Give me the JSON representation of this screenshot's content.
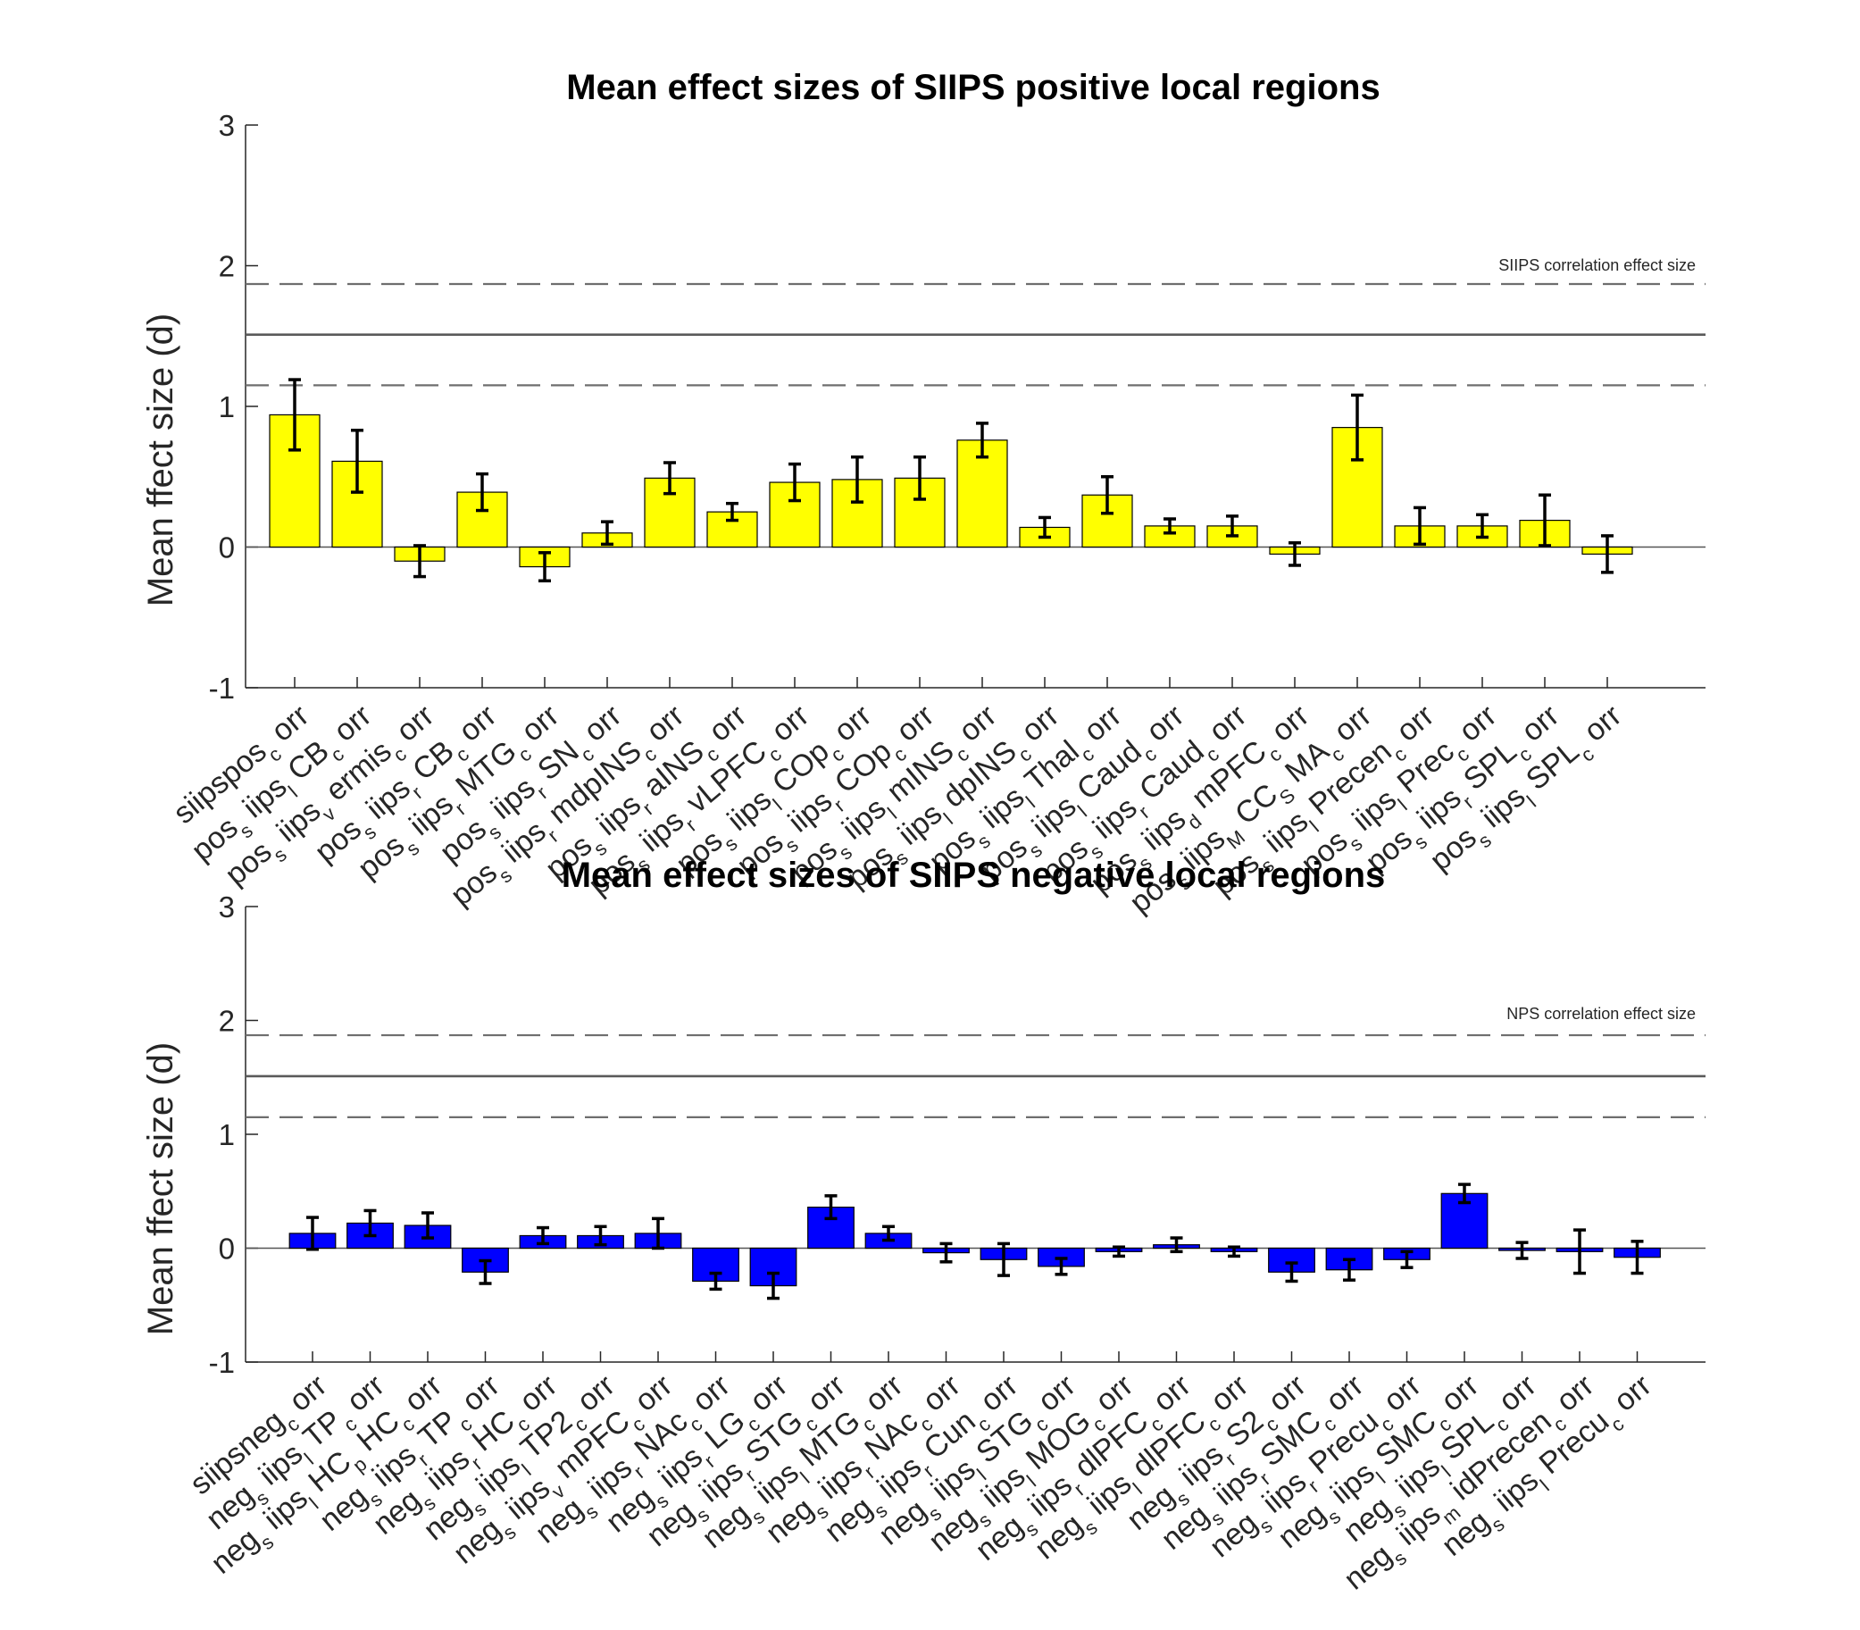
{
  "chart_data": [
    {
      "type": "bar",
      "title": "Mean effect sizes of SIIPS positive local regions",
      "ylabel": "Mean ffect size (d)",
      "xlabel": "",
      "ylim": [
        -1,
        3
      ],
      "yticks": [
        -1,
        0,
        1,
        2,
        3
      ],
      "bar_color": "#ffff00",
      "reference": {
        "label": "SIIPS correlation effect size",
        "value": 1.51,
        "lower": 1.15,
        "upper": 1.87
      },
      "categories": [
        {
          "main": "siipspos",
          "sub": "c",
          "tail": "orr"
        },
        {
          "main": "pos",
          "sub": "s",
          "mid": "iips",
          "sub2": "l",
          "mid2": "CB",
          "sub3": "c",
          "tail": "orr"
        },
        {
          "main": "pos",
          "sub": "s",
          "mid": "iips",
          "sub2": "v",
          "mid2": "ermis",
          "sub3": "c",
          "tail": "orr"
        },
        {
          "main": "pos",
          "sub": "s",
          "mid": "iips",
          "sub2": "r",
          "mid2": "CB",
          "sub3": "c",
          "tail": "orr"
        },
        {
          "main": "pos",
          "sub": "s",
          "mid": "iips",
          "sub2": "r",
          "mid2": "MTG",
          "sub3": "c",
          "tail": "orr"
        },
        {
          "main": "pos",
          "sub": "s",
          "mid": "iips",
          "sub2": "r",
          "mid2": "SN",
          "sub3": "c",
          "tail": "orr"
        },
        {
          "main": "pos",
          "sub": "s",
          "mid": "iips",
          "sub2": "r",
          "mid2": "mdpINS",
          "sub3": "c",
          "tail": "orr"
        },
        {
          "main": "pos",
          "sub": "s",
          "mid": "iips",
          "sub2": "r",
          "mid2": "aINS",
          "sub3": "c",
          "tail": "orr"
        },
        {
          "main": "pos",
          "sub": "s",
          "mid": "iips",
          "sub2": "r",
          "mid2": "vLPFC",
          "sub3": "c",
          "tail": "orr"
        },
        {
          "main": "pos",
          "sub": "s",
          "mid": "iips",
          "sub2": "l",
          "mid2": "COp",
          "sub3": "c",
          "tail": "orr"
        },
        {
          "main": "pos",
          "sub": "s",
          "mid": "iips",
          "sub2": "r",
          "mid2": "COp",
          "sub3": "c",
          "tail": "orr"
        },
        {
          "main": "pos",
          "sub": "s",
          "mid": "iips",
          "sub2": "l",
          "mid2": "mINS",
          "sub3": "c",
          "tail": "orr"
        },
        {
          "main": "pos",
          "sub": "s",
          "mid": "iips",
          "sub2": "l",
          "mid2": "dpINS",
          "sub3": "c",
          "tail": "orr"
        },
        {
          "main": "pos",
          "sub": "s",
          "mid": "iips",
          "sub2": "l",
          "mid2": "Thal",
          "sub3": "c",
          "tail": "orr"
        },
        {
          "main": "pos",
          "sub": "s",
          "mid": "iips",
          "sub2": "l",
          "mid2": "Caud",
          "sub3": "c",
          "tail": "orr"
        },
        {
          "main": "pos",
          "sub": "s",
          "mid": "iips",
          "sub2": "r",
          "mid2": "Caud",
          "sub3": "c",
          "tail": "orr"
        },
        {
          "main": "pos",
          "sub": "s",
          "mid": "iips",
          "sub2": "d",
          "mid2": "mPFC",
          "sub3": "c",
          "tail": "orr"
        },
        {
          "main": "pos",
          "sub": "s",
          "mid": "iips",
          "sub2": "M",
          "mid2": "CC",
          "sub3": "S",
          "mid3": "MA",
          "sub4": "c",
          "tail": "orr"
        },
        {
          "main": "pos",
          "sub": "s",
          "mid": "iips",
          "sub2": "l",
          "mid2": "Precen",
          "sub3": "c",
          "tail": "orr"
        },
        {
          "main": "pos",
          "sub": "s",
          "mid": "iips",
          "sub2": "l",
          "mid2": "Prec",
          "sub3": "c",
          "tail": "orr"
        },
        {
          "main": "pos",
          "sub": "s",
          "mid": "iips",
          "sub2": "r",
          "mid2": "SPL",
          "sub3": "c",
          "tail": "orr"
        },
        {
          "main": "pos",
          "sub": "s",
          "mid": "iips",
          "sub2": "l",
          "mid2": "SPL",
          "sub3": "c",
          "tail": "orr"
        }
      ],
      "values": [
        0.94,
        0.61,
        -0.1,
        0.39,
        -0.14,
        0.1,
        0.49,
        0.25,
        0.46,
        0.48,
        0.49,
        0.76,
        0.14,
        0.37,
        0.15,
        0.15,
        -0.05,
        0.85,
        0.15,
        0.15,
        0.19,
        -0.05
      ],
      "errors": [
        0.25,
        0.22,
        0.11,
        0.13,
        0.1,
        0.08,
        0.11,
        0.06,
        0.13,
        0.16,
        0.15,
        0.12,
        0.07,
        0.13,
        0.05,
        0.07,
        0.08,
        0.23,
        0.13,
        0.08,
        0.18,
        0.13
      ]
    },
    {
      "type": "bar",
      "title": "Mean effect sizes of SIIPS negative local regions",
      "ylabel": "Mean ffect size (d)",
      "xlabel": "",
      "ylim": [
        -1,
        3
      ],
      "yticks": [
        -1,
        0,
        1,
        2,
        3
      ],
      "bar_color": "#0000ff",
      "reference": {
        "label": "NPS correlation effect size",
        "value": 1.51,
        "lower": 1.15,
        "upper": 1.87
      },
      "categories": [
        {
          "main": "siipsneg",
          "sub": "c",
          "tail": "orr"
        },
        {
          "main": "neg",
          "sub": "s",
          "mid": "iips",
          "sub2": "l",
          "mid2": "TP",
          "sub3": "c",
          "tail": "orr"
        },
        {
          "main": "neg",
          "sub": "s",
          "mid": "iips",
          "sub2": "l",
          "mid2": "HC",
          "sub3": "p",
          "mid3": "HC",
          "sub4": "c",
          "tail": "orr"
        },
        {
          "main": "neg",
          "sub": "s",
          "mid": "iips",
          "sub2": "r",
          "mid2": "TP",
          "sub3": "c",
          "tail": "orr"
        },
        {
          "main": "neg",
          "sub": "s",
          "mid": "iips",
          "sub2": "r",
          "mid2": "HC",
          "sub3": "c",
          "tail": "orr"
        },
        {
          "main": "neg",
          "sub": "s",
          "mid": "iips",
          "sub2": "l",
          "mid2": "TP2",
          "sub3": "c",
          "tail": "orr"
        },
        {
          "main": "neg",
          "sub": "s",
          "mid": "iips",
          "sub2": "v",
          "mid2": "mPFC",
          "sub3": "c",
          "tail": "orr"
        },
        {
          "main": "neg",
          "sub": "s",
          "mid": "iips",
          "sub2": "r",
          "mid2": "NAc",
          "sub3": "c",
          "tail": "orr"
        },
        {
          "main": "neg",
          "sub": "s",
          "mid": "iips",
          "sub2": "r",
          "mid2": "LG",
          "sub3": "c",
          "tail": "orr"
        },
        {
          "main": "neg",
          "sub": "s",
          "mid": "iips",
          "sub2": "r",
          "mid2": "STG",
          "sub3": "c",
          "tail": "orr"
        },
        {
          "main": "neg",
          "sub": "s",
          "mid": "iips",
          "sub2": "l",
          "mid2": "MTG",
          "sub3": "c",
          "tail": "orr"
        },
        {
          "main": "neg",
          "sub": "s",
          "mid": "iips",
          "sub2": "r",
          "mid2": "NAc",
          "sub3": "c",
          "tail": "orr"
        },
        {
          "main": "neg",
          "sub": "s",
          "mid": "iips",
          "sub2": "r",
          "mid2": "Cun",
          "sub3": "c",
          "tail": "orr"
        },
        {
          "main": "neg",
          "sub": "s",
          "mid": "iips",
          "sub2": "l",
          "mid2": "STG",
          "sub3": "c",
          "tail": "orr"
        },
        {
          "main": "neg",
          "sub": "s",
          "mid": "iips",
          "sub2": "l",
          "mid2": "MOG",
          "sub3": "c",
          "tail": "orr"
        },
        {
          "main": "neg",
          "sub": "s",
          "mid": "iips",
          "sub2": "r",
          "mid2": "dlPFC",
          "sub3": "c",
          "tail": "orr"
        },
        {
          "main": "neg",
          "sub": "s",
          "mid": "iips",
          "sub2": "l",
          "mid2": "dlPFC",
          "sub3": "c",
          "tail": "orr"
        },
        {
          "main": "neg",
          "sub": "s",
          "mid": "iips",
          "sub2": "r",
          "mid2": "S2",
          "sub3": "c",
          "tail": "orr"
        },
        {
          "main": "neg",
          "sub": "s",
          "mid": "iips",
          "sub2": "r",
          "mid2": "SMC",
          "sub3": "c",
          "tail": "orr"
        },
        {
          "main": "neg",
          "sub": "s",
          "mid": "iips",
          "sub2": "r",
          "mid2": "Precu",
          "sub3": "c",
          "tail": "orr"
        },
        {
          "main": "neg",
          "sub": "s",
          "mid": "iips",
          "sub2": "l",
          "mid2": "SMC",
          "sub3": "c",
          "tail": "orr"
        },
        {
          "main": "neg",
          "sub": "s",
          "mid": "iips",
          "sub2": "l",
          "mid2": "SPL",
          "sub3": "c",
          "tail": "orr"
        },
        {
          "main": "neg",
          "sub": "s",
          "mid": "iips",
          "sub2": "m",
          "mid2": "idPrecen",
          "sub3": "c",
          "tail": "orr"
        },
        {
          "main": "neg",
          "sub": "s",
          "mid": "iips",
          "sub2": "l",
          "mid2": "Precu",
          "sub3": "c",
          "tail": "orr"
        }
      ],
      "values": [
        0.13,
        0.22,
        0.2,
        -0.21,
        0.11,
        0.11,
        0.13,
        -0.29,
        -0.33,
        0.36,
        0.13,
        -0.04,
        -0.1,
        -0.16,
        -0.03,
        0.03,
        -0.03,
        -0.21,
        -0.19,
        -0.1,
        0.48,
        -0.02,
        -0.03,
        -0.08
      ],
      "errors": [
        0.14,
        0.11,
        0.11,
        0.1,
        0.07,
        0.08,
        0.13,
        0.07,
        0.11,
        0.1,
        0.06,
        0.08,
        0.14,
        0.07,
        0.04,
        0.06,
        0.04,
        0.08,
        0.09,
        0.07,
        0.08,
        0.07,
        0.19,
        0.14
      ]
    }
  ]
}
